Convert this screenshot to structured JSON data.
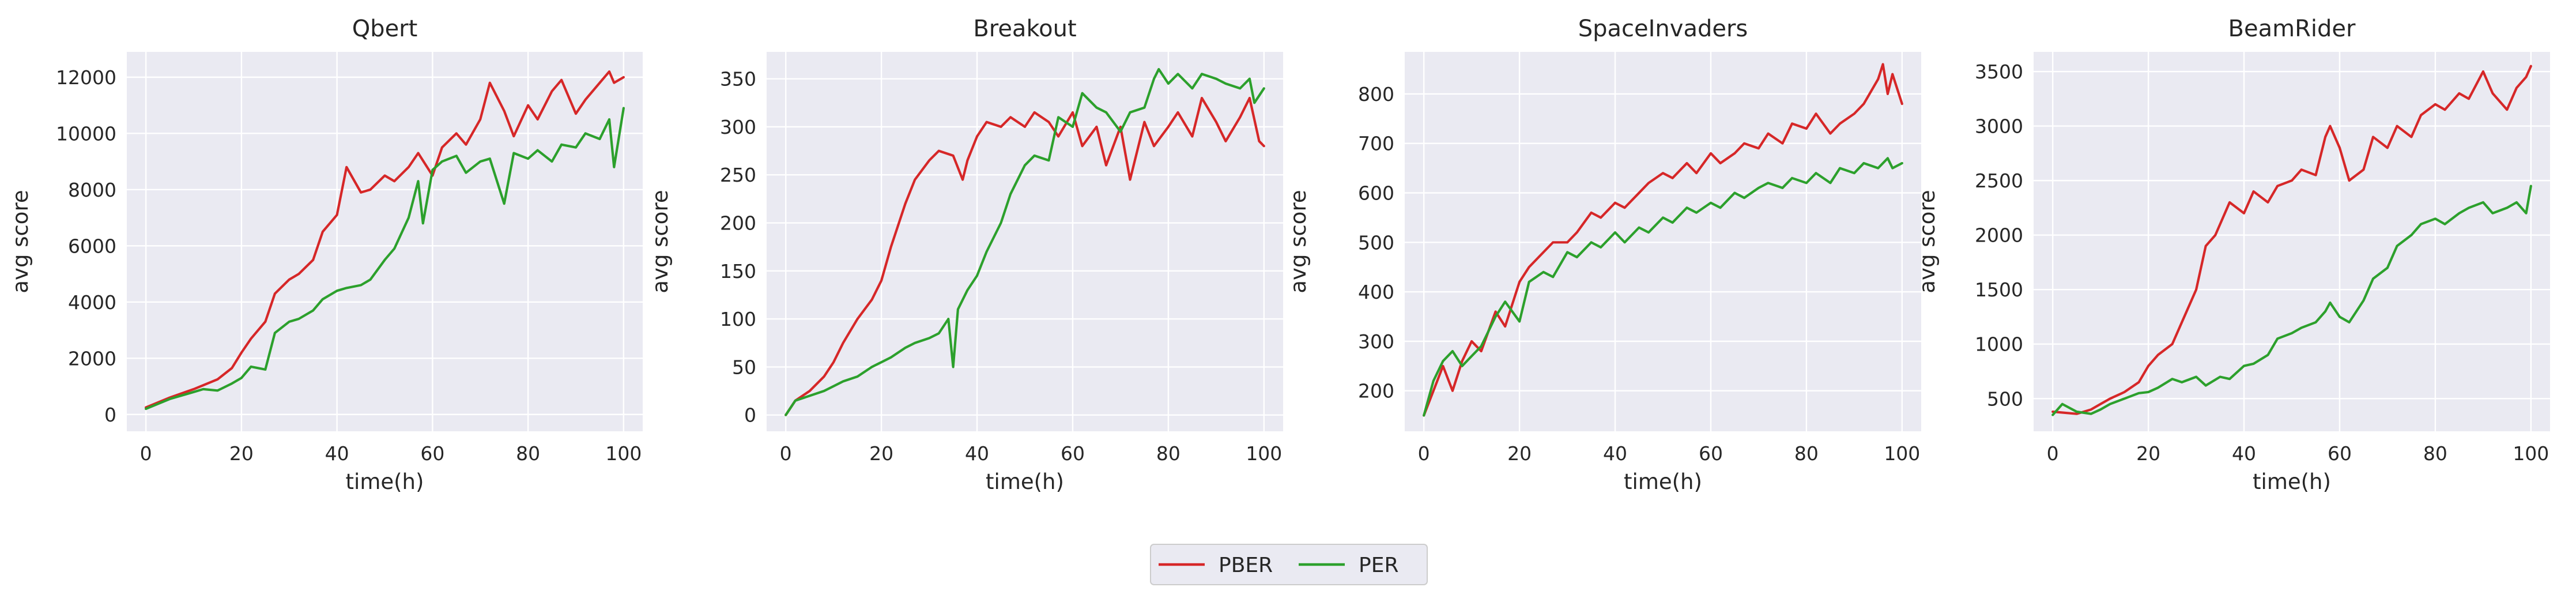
{
  "colors": {
    "background": "#eaeaf2",
    "grid": "#ffffff",
    "PBER": "#d62728",
    "PER": "#2ca02c"
  },
  "legend": {
    "placement": "bottom-center",
    "items": [
      "PBER",
      "PER"
    ]
  },
  "chart_data": [
    {
      "type": "line",
      "title": "Qbert",
      "xlabel": "time(h)",
      "ylabel": "avg score",
      "xlim": [
        -4,
        104
      ],
      "ylim": [
        -600,
        12900
      ],
      "xticks": [
        0,
        20,
        40,
        60,
        80,
        100
      ],
      "yticks": [
        0,
        2000,
        4000,
        6000,
        8000,
        10000,
        12000
      ],
      "grid": true,
      "series": [
        {
          "name": "PBER",
          "x": [
            0,
            5,
            10,
            15,
            18,
            20,
            22,
            25,
            27,
            30,
            32,
            35,
            37,
            40,
            42,
            45,
            47,
            50,
            52,
            55,
            57,
            60,
            62,
            65,
            67,
            70,
            72,
            75,
            77,
            80,
            82,
            85,
            87,
            90,
            92,
            95,
            97,
            98,
            100
          ],
          "y": [
            250,
            600,
            900,
            1250,
            1650,
            2200,
            2700,
            3300,
            4300,
            4800,
            5000,
            5500,
            6500,
            7100,
            8800,
            7900,
            8000,
            8500,
            8300,
            8800,
            9300,
            8500,
            9500,
            10000,
            9600,
            10500,
            11800,
            10800,
            9900,
            11000,
            10500,
            11500,
            11900,
            10700,
            11200,
            11800,
            12200,
            11800,
            12000
          ]
        },
        {
          "name": "PER",
          "x": [
            0,
            5,
            10,
            12,
            15,
            18,
            20,
            22,
            25,
            27,
            30,
            32,
            35,
            37,
            40,
            42,
            45,
            47,
            50,
            52,
            55,
            57,
            58,
            60,
            62,
            65,
            67,
            70,
            72,
            75,
            77,
            80,
            82,
            85,
            87,
            90,
            92,
            95,
            97,
            98,
            100
          ],
          "y": [
            200,
            550,
            800,
            900,
            850,
            1100,
            1300,
            1700,
            1600,
            2900,
            3300,
            3400,
            3700,
            4100,
            4400,
            4500,
            4600,
            4800,
            5500,
            5900,
            7000,
            8300,
            6800,
            8700,
            9000,
            9200,
            8600,
            9000,
            9100,
            7500,
            9300,
            9100,
            9400,
            9000,
            9600,
            9500,
            10000,
            9800,
            10500,
            8800,
            10900
          ]
        }
      ]
    },
    {
      "type": "line",
      "title": "Breakout",
      "xlabel": "time(h)",
      "ylabel": "avg score",
      "xlim": [
        -4,
        104
      ],
      "ylim": [
        -17,
        378
      ],
      "xticks": [
        0,
        20,
        40,
        60,
        80,
        100
      ],
      "yticks": [
        0,
        50,
        100,
        150,
        200,
        250,
        300,
        350
      ],
      "grid": true,
      "series": [
        {
          "name": "PBER",
          "x": [
            0,
            2,
            5,
            8,
            10,
            12,
            15,
            18,
            20,
            22,
            25,
            27,
            30,
            32,
            35,
            37,
            38,
            40,
            42,
            45,
            47,
            50,
            52,
            55,
            57,
            60,
            62,
            65,
            67,
            70,
            72,
            75,
            77,
            80,
            82,
            85,
            87,
            90,
            92,
            95,
            97,
            99,
            100
          ],
          "y": [
            0,
            15,
            25,
            40,
            55,
            75,
            100,
            120,
            140,
            175,
            220,
            245,
            265,
            275,
            270,
            245,
            265,
            290,
            305,
            300,
            310,
            300,
            315,
            305,
            290,
            315,
            280,
            300,
            260,
            300,
            245,
            305,
            280,
            300,
            315,
            290,
            330,
            305,
            285,
            310,
            330,
            285,
            280
          ]
        },
        {
          "name": "PER",
          "x": [
            0,
            2,
            5,
            8,
            10,
            12,
            15,
            18,
            20,
            22,
            25,
            27,
            30,
            32,
            34,
            35,
            36,
            38,
            40,
            42,
            45,
            47,
            50,
            52,
            55,
            57,
            60,
            62,
            65,
            67,
            70,
            72,
            75,
            77,
            78,
            80,
            82,
            85,
            87,
            90,
            92,
            95,
            97,
            98,
            100
          ],
          "y": [
            0,
            15,
            20,
            25,
            30,
            35,
            40,
            50,
            55,
            60,
            70,
            75,
            80,
            85,
            100,
            50,
            110,
            130,
            145,
            170,
            200,
            230,
            260,
            270,
            265,
            310,
            300,
            335,
            320,
            315,
            295,
            315,
            320,
            350,
            360,
            345,
            355,
            340,
            355,
            350,
            345,
            340,
            350,
            325,
            340
          ]
        }
      ]
    },
    {
      "type": "line",
      "title": "SpaceInvaders",
      "xlabel": "time(h)",
      "ylabel": "avg score",
      "xlim": [
        -4,
        104
      ],
      "ylim": [
        118,
        885
      ],
      "xticks": [
        0,
        20,
        40,
        60,
        80,
        100
      ],
      "yticks": [
        200,
        300,
        400,
        500,
        600,
        700,
        800
      ],
      "grid": true,
      "series": [
        {
          "name": "PBER",
          "x": [
            0,
            2,
            4,
            6,
            8,
            10,
            12,
            15,
            17,
            20,
            22,
            25,
            27,
            30,
            32,
            35,
            37,
            40,
            42,
            45,
            47,
            50,
            52,
            55,
            57,
            60,
            62,
            65,
            67,
            70,
            72,
            75,
            77,
            80,
            82,
            85,
            87,
            90,
            92,
            95,
            96,
            97,
            98,
            99,
            100
          ],
          "y": [
            150,
            200,
            250,
            200,
            260,
            300,
            280,
            360,
            330,
            420,
            450,
            480,
            500,
            500,
            520,
            560,
            550,
            580,
            570,
            600,
            620,
            640,
            630,
            660,
            640,
            680,
            660,
            680,
            700,
            690,
            720,
            700,
            740,
            730,
            760,
            720,
            740,
            760,
            780,
            830,
            860,
            800,
            840,
            810,
            780
          ]
        },
        {
          "name": "PER",
          "x": [
            0,
            2,
            4,
            6,
            8,
            10,
            12,
            15,
            17,
            20,
            22,
            25,
            27,
            30,
            32,
            35,
            37,
            40,
            42,
            45,
            47,
            50,
            52,
            55,
            57,
            60,
            62,
            65,
            67,
            70,
            72,
            75,
            77,
            80,
            82,
            85,
            87,
            90,
            92,
            95,
            97,
            98,
            100
          ],
          "y": [
            150,
            220,
            260,
            280,
            250,
            270,
            290,
            350,
            380,
            340,
            420,
            440,
            430,
            480,
            470,
            500,
            490,
            520,
            500,
            530,
            520,
            550,
            540,
            570,
            560,
            580,
            570,
            600,
            590,
            610,
            620,
            610,
            630,
            620,
            640,
            620,
            650,
            640,
            660,
            650,
            670,
            650,
            660
          ]
        }
      ]
    },
    {
      "type": "line",
      "title": "BeamRider",
      "xlabel": "time(h)",
      "ylabel": "avg score",
      "xlim": [
        -4,
        104
      ],
      "ylim": [
        200,
        3680
      ],
      "xticks": [
        0,
        20,
        40,
        60,
        80,
        100
      ],
      "yticks": [
        500,
        1000,
        1500,
        2000,
        2500,
        3000,
        3500
      ],
      "grid": true,
      "series": [
        {
          "name": "PBER",
          "x": [
            0,
            5,
            8,
            10,
            12,
            15,
            18,
            20,
            22,
            25,
            27,
            28,
            30,
            32,
            34,
            35,
            37,
            40,
            42,
            45,
            47,
            50,
            52,
            55,
            57,
            58,
            60,
            62,
            65,
            67,
            70,
            72,
            75,
            77,
            80,
            82,
            85,
            87,
            90,
            92,
            95,
            97,
            99,
            100
          ],
          "y": [
            380,
            360,
            400,
            450,
            500,
            560,
            650,
            800,
            900,
            1000,
            1200,
            1300,
            1500,
            1900,
            2000,
            2100,
            2300,
            2200,
            2400,
            2300,
            2450,
            2500,
            2600,
            2550,
            2900,
            3000,
            2800,
            2500,
            2600,
            2900,
            2800,
            3000,
            2900,
            3100,
            3200,
            3150,
            3300,
            3250,
            3500,
            3300,
            3150,
            3350,
            3450,
            3550
          ]
        },
        {
          "name": "PER",
          "x": [
            0,
            2,
            5,
            8,
            10,
            12,
            15,
            18,
            20,
            22,
            25,
            27,
            30,
            32,
            35,
            37,
            40,
            42,
            45,
            47,
            50,
            52,
            55,
            57,
            58,
            60,
            62,
            65,
            67,
            70,
            72,
            75,
            77,
            80,
            82,
            85,
            87,
            90,
            92,
            95,
            97,
            99,
            100
          ],
          "y": [
            350,
            450,
            380,
            360,
            400,
            450,
            500,
            550,
            560,
            600,
            680,
            650,
            700,
            620,
            700,
            680,
            800,
            820,
            900,
            1050,
            1100,
            1150,
            1200,
            1300,
            1380,
            1250,
            1200,
            1400,
            1600,
            1700,
            1900,
            2000,
            2100,
            2150,
            2100,
            2200,
            2250,
            2300,
            2200,
            2250,
            2300,
            2200,
            2450
          ]
        }
      ]
    }
  ]
}
